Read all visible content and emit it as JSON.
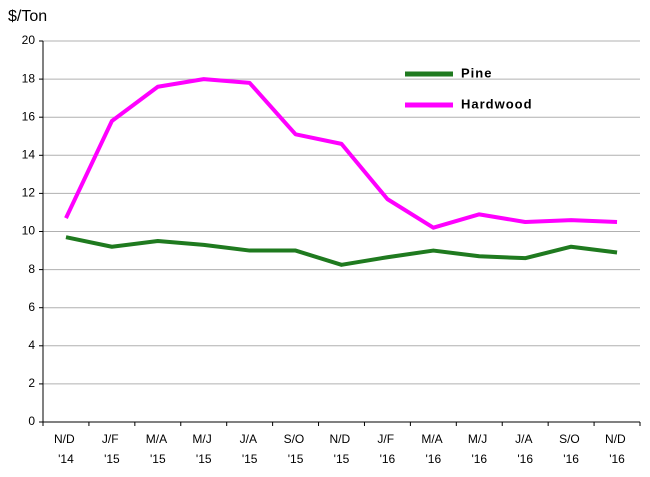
{
  "chart_data": {
    "type": "line",
    "y_label": "$/Ton",
    "categories": [
      "N/D '14",
      "J/F '15",
      "M/A '15",
      "M/J '15",
      "J/A '15",
      "S/O '15",
      "N/D '15",
      "J/F '16",
      "M/A '16",
      "M/J '16",
      "J/A '16",
      "S/O '16",
      "N/D '16"
    ],
    "series": [
      {
        "name": "Pine",
        "color": "#1f7a1f",
        "values": [
          9.7,
          9.2,
          9.5,
          9.3,
          9.0,
          9.0,
          8.25,
          8.65,
          9.0,
          8.7,
          8.6,
          9.2,
          8.9
        ]
      },
      {
        "name": "Hardwood",
        "color": "#ff00ff",
        "values": [
          10.7,
          15.8,
          17.6,
          18.0,
          17.8,
          15.1,
          14.6,
          11.7,
          10.2,
          10.9,
          10.5,
          10.6,
          10.5
        ]
      }
    ],
    "ylim": [
      0,
      20
    ],
    "yticks": [
      0,
      2,
      4,
      6,
      8,
      10,
      12,
      14,
      16,
      18,
      20
    ],
    "grid": true,
    "legend": "upper-right"
  }
}
